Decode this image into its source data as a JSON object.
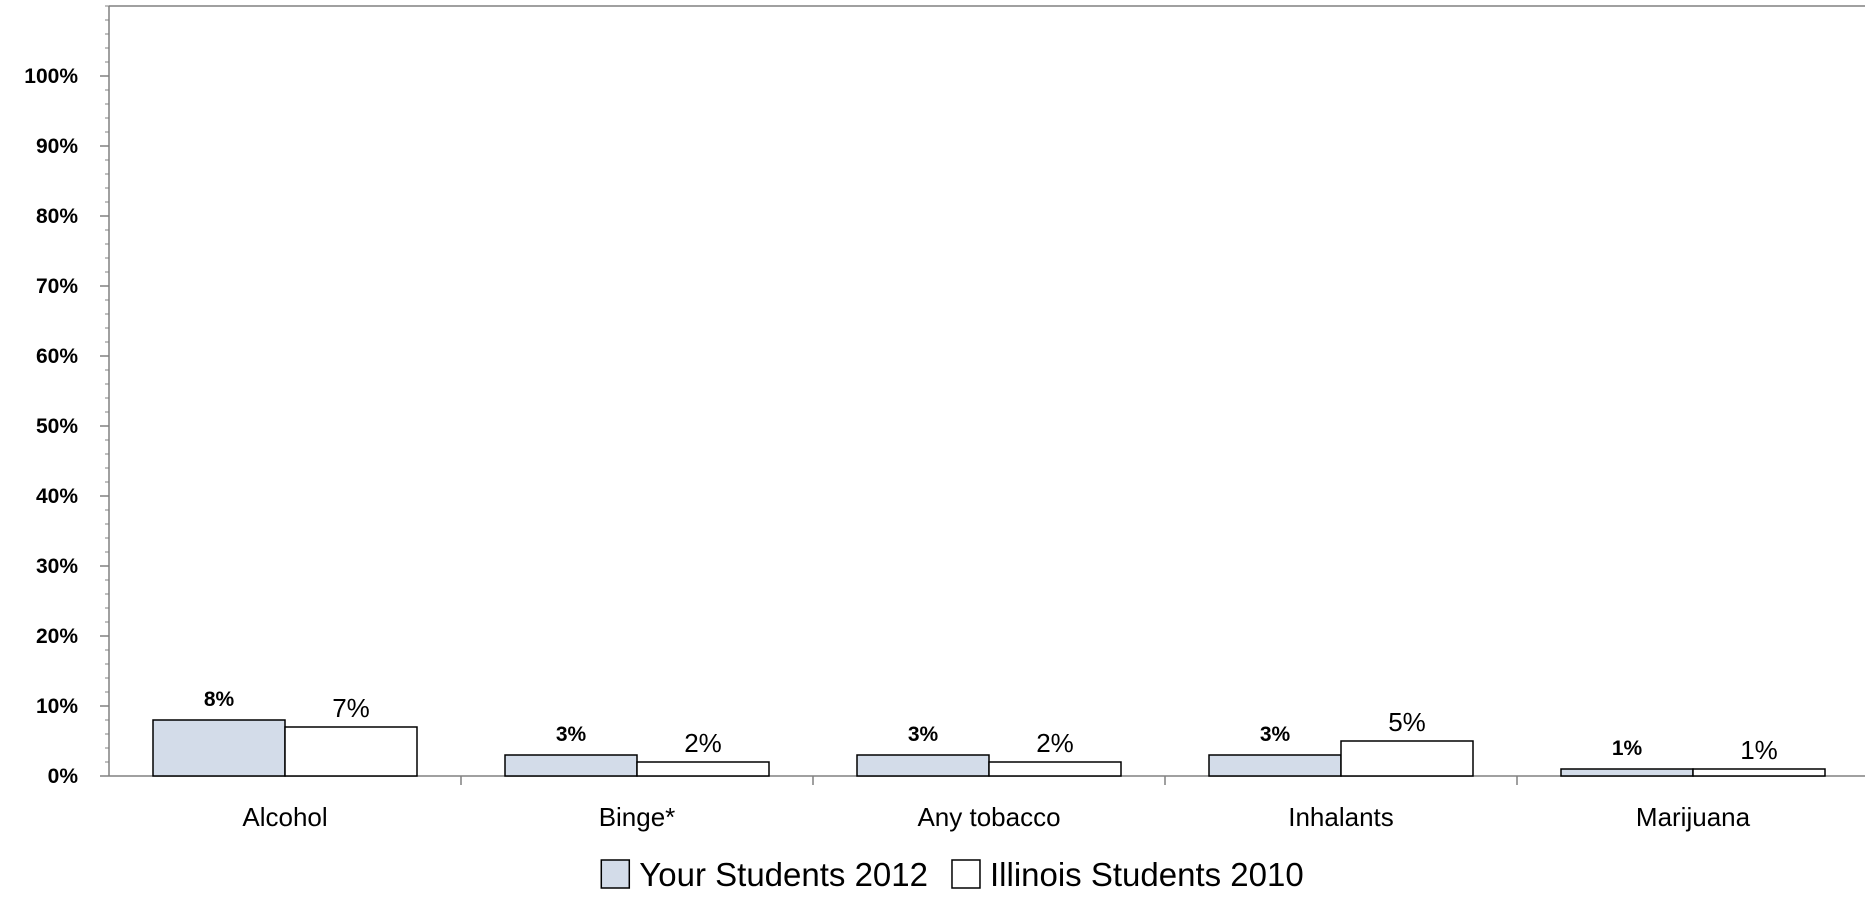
{
  "chart_data": {
    "type": "bar",
    "categories": [
      "Alcohol",
      "Binge*",
      "Any tobacco",
      "Inhalants",
      "Marijuana"
    ],
    "series": [
      {
        "name": "Your Students 2012",
        "values": [
          8,
          3,
          3,
          3,
          1
        ],
        "data_labels": [
          "8%",
          "3%",
          "3%",
          "3%",
          "1%"
        ],
        "color": "#d3dce9"
      },
      {
        "name": "Illinois Students 2010",
        "values": [
          7,
          2,
          2,
          5,
          1
        ],
        "data_labels": [
          "7%",
          "2%",
          "2%",
          "5%",
          "1%"
        ],
        "color": "#ffffff"
      }
    ],
    "ylim": [
      0,
      110
    ],
    "y_ticks": [
      0,
      10,
      20,
      30,
      40,
      50,
      60,
      70,
      80,
      90,
      100
    ],
    "y_tick_labels": [
      "0%",
      "10%",
      "20%",
      "30%",
      "40%",
      "50%",
      "60%",
      "70%",
      "80%",
      "90%",
      "100%"
    ],
    "grid": false,
    "legend_position": "bottom",
    "title": "",
    "xlabel": "",
    "ylabel": ""
  }
}
